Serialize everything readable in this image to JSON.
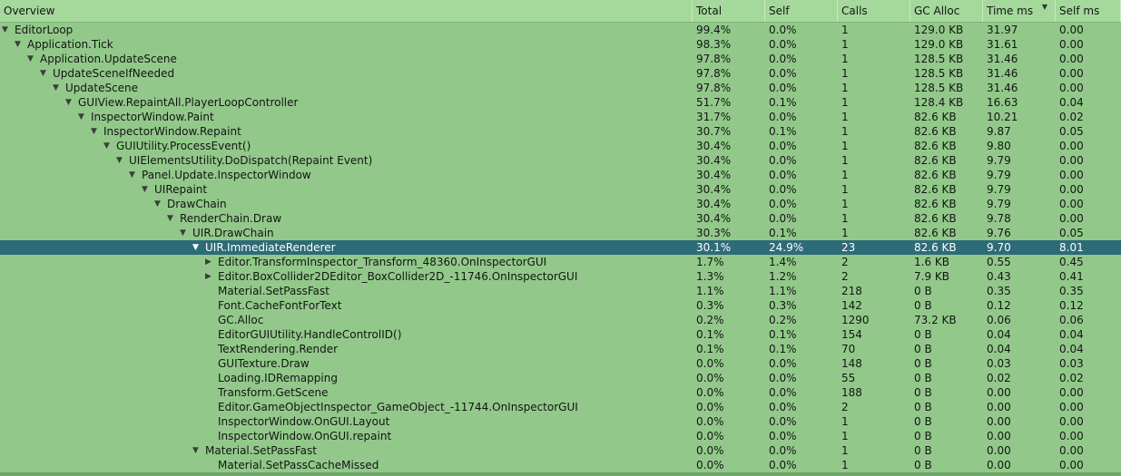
{
  "columns": {
    "overview": "Overview",
    "total": "Total",
    "self": "Self",
    "calls": "Calls",
    "gc_alloc": "GC Alloc",
    "time_ms": "Time ms",
    "self_ms": "Self ms",
    "sort_indicator": "▼"
  },
  "colors": {
    "background": "#92c98a",
    "header": "#a5d99b",
    "selection": "#2e6b78"
  },
  "rows": [
    {
      "depth": 0,
      "expander": "expanded",
      "name": "EditorLoop",
      "total": "99.4%",
      "self": "0.0%",
      "calls": "1",
      "gc": "129.0 KB",
      "time": "31.97",
      "selfms": "0.00"
    },
    {
      "depth": 1,
      "expander": "expanded",
      "name": "Application.Tick",
      "total": "98.3%",
      "self": "0.0%",
      "calls": "1",
      "gc": "129.0 KB",
      "time": "31.61",
      "selfms": "0.00"
    },
    {
      "depth": 2,
      "expander": "expanded",
      "name": "Application.UpdateScene",
      "total": "97.8%",
      "self": "0.0%",
      "calls": "1",
      "gc": "128.5 KB",
      "time": "31.46",
      "selfms": "0.00"
    },
    {
      "depth": 3,
      "expander": "expanded",
      "name": "UpdateSceneIfNeeded",
      "total": "97.8%",
      "self": "0.0%",
      "calls": "1",
      "gc": "128.5 KB",
      "time": "31.46",
      "selfms": "0.00"
    },
    {
      "depth": 4,
      "expander": "expanded",
      "name": "UpdateScene",
      "total": "97.8%",
      "self": "0.0%",
      "calls": "1",
      "gc": "128.5 KB",
      "time": "31.46",
      "selfms": "0.00"
    },
    {
      "depth": 5,
      "expander": "expanded",
      "name": "GUIView.RepaintAll.PlayerLoopController",
      "total": "51.7%",
      "self": "0.1%",
      "calls": "1",
      "gc": "128.4 KB",
      "time": "16.63",
      "selfms": "0.04"
    },
    {
      "depth": 6,
      "expander": "expanded",
      "name": "InspectorWindow.Paint",
      "total": "31.7%",
      "self": "0.0%",
      "calls": "1",
      "gc": "82.6 KB",
      "time": "10.21",
      "selfms": "0.02"
    },
    {
      "depth": 7,
      "expander": "expanded",
      "name": "InspectorWindow.Repaint",
      "total": "30.7%",
      "self": "0.1%",
      "calls": "1",
      "gc": "82.6 KB",
      "time": "9.87",
      "selfms": "0.05"
    },
    {
      "depth": 8,
      "expander": "expanded",
      "name": "GUIUtility.ProcessEvent()",
      "total": "30.4%",
      "self": "0.0%",
      "calls": "1",
      "gc": "82.6 KB",
      "time": "9.80",
      "selfms": "0.00"
    },
    {
      "depth": 9,
      "expander": "expanded",
      "name": "UIElementsUtility.DoDispatch(Repaint Event)",
      "total": "30.4%",
      "self": "0.0%",
      "calls": "1",
      "gc": "82.6 KB",
      "time": "9.79",
      "selfms": "0.00"
    },
    {
      "depth": 10,
      "expander": "expanded",
      "name": "Panel.Update.InspectorWindow",
      "total": "30.4%",
      "self": "0.0%",
      "calls": "1",
      "gc": "82.6 KB",
      "time": "9.79",
      "selfms": "0.00"
    },
    {
      "depth": 11,
      "expander": "expanded",
      "name": "UIRepaint",
      "total": "30.4%",
      "self": "0.0%",
      "calls": "1",
      "gc": "82.6 KB",
      "time": "9.79",
      "selfms": "0.00"
    },
    {
      "depth": 12,
      "expander": "expanded",
      "name": "DrawChain",
      "total": "30.4%",
      "self": "0.0%",
      "calls": "1",
      "gc": "82.6 KB",
      "time": "9.79",
      "selfms": "0.00"
    },
    {
      "depth": 13,
      "expander": "expanded",
      "name": "RenderChain.Draw",
      "total": "30.4%",
      "self": "0.0%",
      "calls": "1",
      "gc": "82.6 KB",
      "time": "9.78",
      "selfms": "0.00"
    },
    {
      "depth": 14,
      "expander": "expanded",
      "name": "UIR.DrawChain",
      "total": "30.3%",
      "self": "0.1%",
      "calls": "1",
      "gc": "82.6 KB",
      "time": "9.76",
      "selfms": "0.05"
    },
    {
      "depth": 15,
      "expander": "expanded",
      "name": "UIR.ImmediateRenderer",
      "total": "30.1%",
      "self": "24.9%",
      "calls": "23",
      "gc": "82.6 KB",
      "time": "9.70",
      "selfms": "8.01",
      "selected": true
    },
    {
      "depth": 16,
      "expander": "collapsed",
      "name": "Editor.TransformInspector_Transform_48360.OnInspectorGUI",
      "total": "1.7%",
      "self": "1.4%",
      "calls": "2",
      "gc": "1.6 KB",
      "time": "0.55",
      "selfms": "0.45"
    },
    {
      "depth": 16,
      "expander": "collapsed",
      "name": "Editor.BoxCollider2DEditor_BoxCollider2D_-11746.OnInspectorGUI",
      "total": "1.3%",
      "self": "1.2%",
      "calls": "2",
      "gc": "7.9 KB",
      "time": "0.43",
      "selfms": "0.41"
    },
    {
      "depth": 16,
      "expander": "none",
      "name": "Material.SetPassFast",
      "total": "1.1%",
      "self": "1.1%",
      "calls": "218",
      "gc": "0 B",
      "time": "0.35",
      "selfms": "0.35"
    },
    {
      "depth": 16,
      "expander": "none",
      "name": "Font.CacheFontForText",
      "total": "0.3%",
      "self": "0.3%",
      "calls": "142",
      "gc": "0 B",
      "time": "0.12",
      "selfms": "0.12"
    },
    {
      "depth": 16,
      "expander": "none",
      "name": "GC.Alloc",
      "total": "0.2%",
      "self": "0.2%",
      "calls": "1290",
      "gc": "73.2 KB",
      "time": "0.06",
      "selfms": "0.06"
    },
    {
      "depth": 16,
      "expander": "none",
      "name": "EditorGUIUtility.HandleControlID()",
      "total": "0.1%",
      "self": "0.1%",
      "calls": "154",
      "gc": "0 B",
      "time": "0.04",
      "selfms": "0.04"
    },
    {
      "depth": 16,
      "expander": "none",
      "name": "TextRendering.Render",
      "total": "0.1%",
      "self": "0.1%",
      "calls": "70",
      "gc": "0 B",
      "time": "0.04",
      "selfms": "0.04"
    },
    {
      "depth": 16,
      "expander": "none",
      "name": "GUITexture.Draw",
      "total": "0.0%",
      "self": "0.0%",
      "calls": "148",
      "gc": "0 B",
      "time": "0.03",
      "selfms": "0.03"
    },
    {
      "depth": 16,
      "expander": "none",
      "name": "Loading.IDRemapping",
      "total": "0.0%",
      "self": "0.0%",
      "calls": "55",
      "gc": "0 B",
      "time": "0.02",
      "selfms": "0.02"
    },
    {
      "depth": 16,
      "expander": "none",
      "name": "Transform.GetScene",
      "total": "0.0%",
      "self": "0.0%",
      "calls": "188",
      "gc": "0 B",
      "time": "0.00",
      "selfms": "0.00"
    },
    {
      "depth": 16,
      "expander": "none",
      "name": "Editor.GameObjectInspector_GameObject_-11744.OnInspectorGUI",
      "total": "0.0%",
      "self": "0.0%",
      "calls": "2",
      "gc": "0 B",
      "time": "0.00",
      "selfms": "0.00"
    },
    {
      "depth": 16,
      "expander": "none",
      "name": "InspectorWindow.OnGUI.Layout",
      "total": "0.0%",
      "self": "0.0%",
      "calls": "1",
      "gc": "0 B",
      "time": "0.00",
      "selfms": "0.00"
    },
    {
      "depth": 16,
      "expander": "none",
      "name": "InspectorWindow.OnGUI.repaint",
      "total": "0.0%",
      "self": "0.0%",
      "calls": "1",
      "gc": "0 B",
      "time": "0.00",
      "selfms": "0.00"
    },
    {
      "depth": 15,
      "expander": "expanded",
      "name": "Material.SetPassFast",
      "total": "0.0%",
      "self": "0.0%",
      "calls": "1",
      "gc": "0 B",
      "time": "0.00",
      "selfms": "0.00"
    },
    {
      "depth": 16,
      "expander": "none",
      "name": "Material.SetPassCacheMissed",
      "total": "0.0%",
      "self": "0.0%",
      "calls": "1",
      "gc": "0 B",
      "time": "0.00",
      "selfms": "0.00"
    }
  ]
}
